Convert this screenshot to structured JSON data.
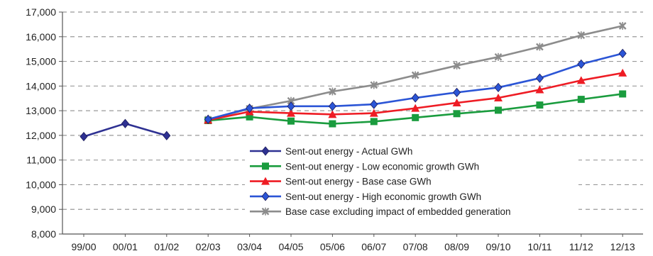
{
  "chart_data": {
    "type": "line",
    "title": "",
    "xlabel": "",
    "ylabel": "",
    "categories": [
      "99/00",
      "00/01",
      "01/02",
      "02/03",
      "03/04",
      "04/05",
      "05/06",
      "06/07",
      "07/08",
      "08/09",
      "09/10",
      "10/11",
      "11/12",
      "12/13"
    ],
    "ylim": [
      8000,
      17000
    ],
    "yticks": [
      8000,
      9000,
      10000,
      11000,
      12000,
      13000,
      14000,
      15000,
      16000,
      17000
    ],
    "ytick_labels": [
      "8,000",
      "9,000",
      "10,000",
      "11,000",
      "12,000",
      "13,000",
      "14,000",
      "15,000",
      "16,000",
      "17,000"
    ],
    "grid": "horizontal dashed",
    "legend_position": "bottom-center",
    "series": [
      {
        "name": "Sent-out energy - Actual GWh",
        "color": "#2e3192",
        "marker": "diamond",
        "values": [
          11950,
          12480,
          11990,
          null,
          null,
          null,
          null,
          null,
          null,
          null,
          null,
          null,
          null,
          null
        ]
      },
      {
        "name": "Sent-out energy - Low economic growth GWh",
        "color": "#1a9c3e",
        "marker": "square",
        "values": [
          null,
          null,
          null,
          12600,
          12750,
          12580,
          12470,
          12560,
          12720,
          12880,
          13020,
          13230,
          13460,
          13680
        ]
      },
      {
        "name": "Sent-out energy - Base case GWh",
        "color": "#ee1c24",
        "marker": "triangle",
        "values": [
          null,
          null,
          null,
          12620,
          12960,
          12900,
          12850,
          12900,
          13100,
          13320,
          13520,
          13850,
          14230,
          14530
        ]
      },
      {
        "name": "Sent-out energy - High economic growth GWh",
        "color": "#2b55d6",
        "marker": "diamond",
        "values": [
          null,
          null,
          null,
          12650,
          13100,
          13180,
          13180,
          13260,
          13520,
          13740,
          13940,
          14320,
          14890,
          15320
        ]
      },
      {
        "name": "Base case excluding impact of embedded generation",
        "color": "#8c8c8c",
        "marker": "x",
        "values": [
          null,
          null,
          null,
          12640,
          13080,
          13400,
          13780,
          14040,
          14440,
          14830,
          15180,
          15590,
          16060,
          16440
        ]
      }
    ]
  }
}
